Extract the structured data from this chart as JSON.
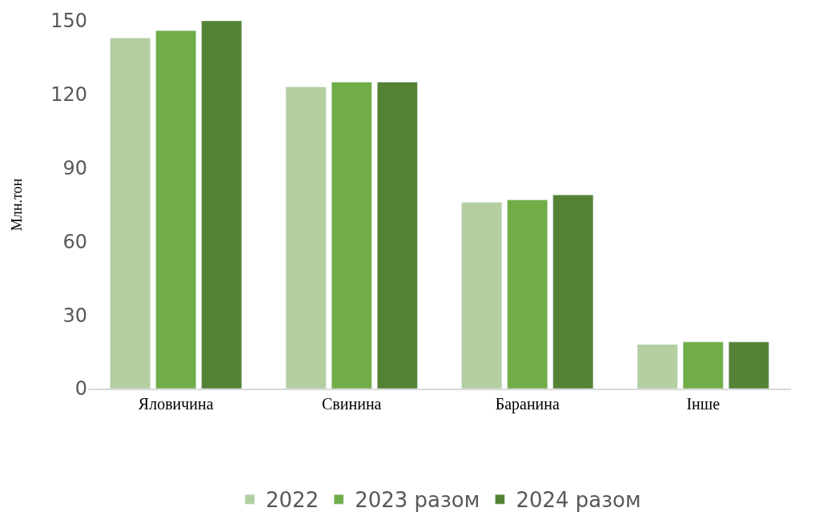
{
  "chart_data": {
    "type": "bar",
    "ylabel": "Млн.тон",
    "categories": [
      "Яловичина",
      "Свинина",
      "Баранина",
      "Інше"
    ],
    "series": [
      {
        "name": "2022",
        "color": "#b3cfa0",
        "values": [
          143,
          123,
          76,
          18
        ]
      },
      {
        "name": "2023 разом",
        "color": "#70ad47",
        "values": [
          146,
          125,
          77,
          19
        ]
      },
      {
        "name": "2024 разом",
        "color": "#548235",
        "values": [
          150,
          125,
          79,
          19
        ]
      }
    ],
    "ylim": [
      0,
      150
    ],
    "yticks": [
      0,
      30,
      60,
      90,
      120,
      150
    ],
    "grid": false,
    "legend": "bottom"
  }
}
